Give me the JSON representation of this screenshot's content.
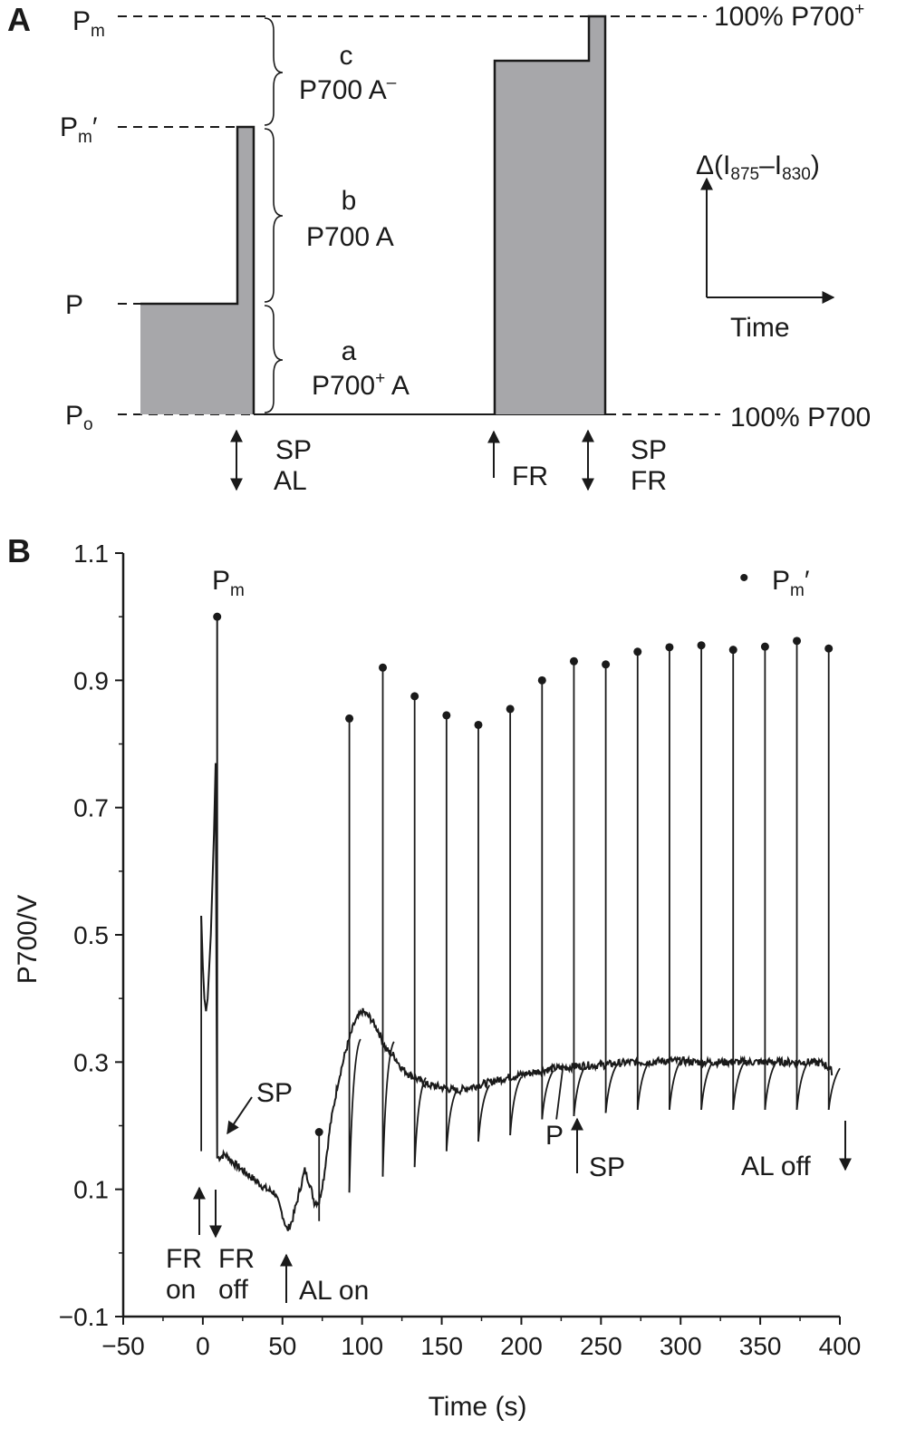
{
  "panel_a": {
    "panel_label": "A",
    "level_labels": {
      "pm": "P",
      "pm_sub": "m",
      "pm_prime": "P",
      "pm_prime_sub": "m",
      "pm_prime_mark": "′",
      "p": "P",
      "po": "P",
      "po_sub": "o"
    },
    "right_labels": {
      "top": "100% P700",
      "top_sup": "+",
      "bottom": "100% P700"
    },
    "regions": {
      "c_letter": "c",
      "c_text": "P700 A",
      "c_sup": "–",
      "b_letter": "b",
      "b_text": "P700 A",
      "a_letter": "a",
      "a_text": "P700",
      "a_sup": "+",
      "a_text2": " A"
    },
    "axis_key": {
      "delta": "Δ(I",
      "sub1": "875",
      "dash": "–I",
      "sub2": "830",
      "close": ")",
      "time": "Time"
    },
    "event_labels": {
      "sp1": "SP",
      "al": "AL",
      "fr": "FR",
      "sp2": "SP",
      "fr2": "FR"
    }
  },
  "panel_b": {
    "panel_label": "B",
    "legend_marker": "•",
    "legend_text": "P",
    "legend_sub": "m",
    "legend_mark": "′",
    "pm_label": "P",
    "pm_sub": "m",
    "annotations": {
      "sp": "SP",
      "p": "P",
      "sp2": "SP",
      "al_off": "AL off",
      "fr_on_1": "FR",
      "fr_on_2": "on",
      "fr_off_1": "FR",
      "fr_off_2": "off",
      "al_on": "AL on"
    }
  },
  "chart_data": {
    "type": "line",
    "xlabel": "Time (s)",
    "ylabel": "P700/V",
    "xlim": [
      -50,
      400
    ],
    "ylim": [
      -0.1,
      1.1
    ],
    "x_ticks": [
      "−50",
      "0",
      "50",
      "100",
      "150",
      "200",
      "250",
      "300",
      "350",
      "400"
    ],
    "y_ticks": [
      "−0.1",
      "0.1",
      "0.3",
      "0.5",
      "0.7",
      "0.9",
      "1.1"
    ],
    "pm_point": {
      "x": 9,
      "y": 1.0
    },
    "pm_prime_points": [
      {
        "x": 73,
        "y": 0.19
      },
      {
        "x": 92,
        "y": 0.84
      },
      {
        "x": 113,
        "y": 0.92
      },
      {
        "x": 133,
        "y": 0.875
      },
      {
        "x": 153,
        "y": 0.845
      },
      {
        "x": 173,
        "y": 0.83
      },
      {
        "x": 193,
        "y": 0.855
      },
      {
        "x": 213,
        "y": 0.9
      },
      {
        "x": 233,
        "y": 0.93
      },
      {
        "x": 253,
        "y": 0.925
      },
      {
        "x": 273,
        "y": 0.945
      },
      {
        "x": 293,
        "y": 0.952
      },
      {
        "x": 313,
        "y": 0.955
      },
      {
        "x": 333,
        "y": 0.948
      },
      {
        "x": 353,
        "y": 0.953
      },
      {
        "x": 373,
        "y": 0.962
      },
      {
        "x": 393,
        "y": 0.95
      }
    ],
    "baseline": [
      [
        -1,
        0.53
      ],
      [
        0,
        0.45
      ],
      [
        1,
        0.4
      ],
      [
        2,
        0.38
      ],
      [
        3,
        0.4
      ],
      [
        5,
        0.5
      ],
      [
        7,
        0.66
      ],
      [
        8,
        0.77
      ],
      [
        9,
        0.15
      ],
      [
        10,
        0.15
      ],
      [
        14,
        0.155
      ],
      [
        20,
        0.14
      ],
      [
        30,
        0.12
      ],
      [
        40,
        0.1
      ],
      [
        45,
        0.095
      ],
      [
        50,
        0.06
      ],
      [
        53,
        0.035
      ],
      [
        56,
        0.05
      ],
      [
        60,
        0.09
      ],
      [
        64,
        0.13
      ],
      [
        67,
        0.11
      ],
      [
        70,
        0.08
      ],
      [
        73,
        0.08
      ],
      [
        76,
        0.12
      ],
      [
        80,
        0.2
      ],
      [
        85,
        0.27
      ],
      [
        90,
        0.32
      ],
      [
        95,
        0.36
      ],
      [
        100,
        0.38
      ],
      [
        105,
        0.37
      ],
      [
        110,
        0.35
      ],
      [
        115,
        0.32
      ],
      [
        120,
        0.31
      ],
      [
        125,
        0.29
      ],
      [
        130,
        0.28
      ],
      [
        140,
        0.265
      ],
      [
        150,
        0.26
      ],
      [
        160,
        0.255
      ],
      [
        170,
        0.262
      ],
      [
        180,
        0.268
      ],
      [
        190,
        0.275
      ],
      [
        200,
        0.28
      ],
      [
        210,
        0.285
      ],
      [
        220,
        0.29
      ],
      [
        230,
        0.292
      ],
      [
        240,
        0.295
      ],
      [
        250,
        0.295
      ],
      [
        260,
        0.298
      ],
      [
        270,
        0.3
      ],
      [
        280,
        0.3
      ],
      [
        290,
        0.302
      ],
      [
        300,
        0.302
      ],
      [
        310,
        0.3
      ],
      [
        320,
        0.3
      ],
      [
        330,
        0.3
      ],
      [
        340,
        0.3
      ],
      [
        350,
        0.3
      ],
      [
        360,
        0.3
      ],
      [
        370,
        0.3
      ],
      [
        380,
        0.3
      ],
      [
        390,
        0.298
      ],
      [
        395,
        0.285
      ]
    ],
    "dips": [
      {
        "x": 92,
        "y": 0.095
      },
      {
        "x": 113,
        "y": 0.12
      },
      {
        "x": 133,
        "y": 0.135
      },
      {
        "x": 153,
        "y": 0.16
      },
      {
        "x": 173,
        "y": 0.175
      },
      {
        "x": 193,
        "y": 0.185
      },
      {
        "x": 213,
        "y": 0.21
      },
      {
        "x": 233,
        "y": 0.215
      },
      {
        "x": 253,
        "y": 0.22
      },
      {
        "x": 273,
        "y": 0.225
      },
      {
        "x": 293,
        "y": 0.225
      },
      {
        "x": 313,
        "y": 0.225
      },
      {
        "x": 333,
        "y": 0.225
      },
      {
        "x": 353,
        "y": 0.225
      },
      {
        "x": 373,
        "y": 0.225
      },
      {
        "x": 393,
        "y": 0.225
      }
    ]
  }
}
